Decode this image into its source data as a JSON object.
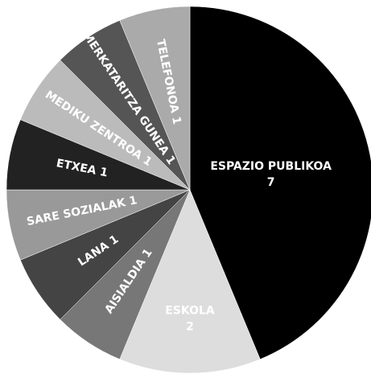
{
  "chart_data": {
    "type": "pie",
    "categories": [
      "ESPAZIO PUBLIKOA",
      "ESKOLA",
      "AISIALDIA",
      "LANA",
      "SARE SOZIALAK",
      "ETXEA",
      "MEDIKU ZENTROA",
      "MERKATARITZA GUNEA",
      "TELEFONOA"
    ],
    "values": [
      7,
      2,
      1,
      1,
      1,
      1,
      1,
      1,
      1
    ],
    "colors": [
      "#000000",
      "#dddddd",
      "#777777",
      "#444444",
      "#999999",
      "#222222",
      "#bbbbbb",
      "#555555",
      "#aaaaaa"
    ]
  }
}
